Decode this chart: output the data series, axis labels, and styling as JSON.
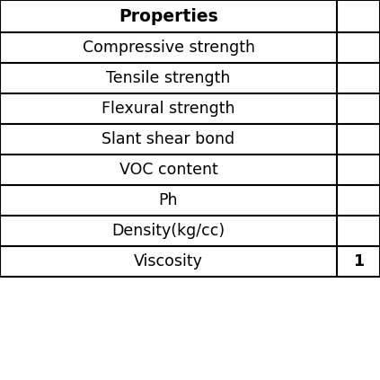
{
  "col1_header": "Properties",
  "rows": [
    "Compressive strength",
    "Tensile strength",
    "Flexural strength",
    "Slant shear bond",
    "VOC content",
    "Ph",
    "Density(kg/cc)",
    "Viscosity"
  ],
  "col2_values": [
    "",
    "",
    "",
    "",
    "",
    "",
    "",
    "1"
  ],
  "bg_color": "#ffffff",
  "line_color": "#000000",
  "header_fontsize": 13.5,
  "cell_fontsize": 12.5
}
